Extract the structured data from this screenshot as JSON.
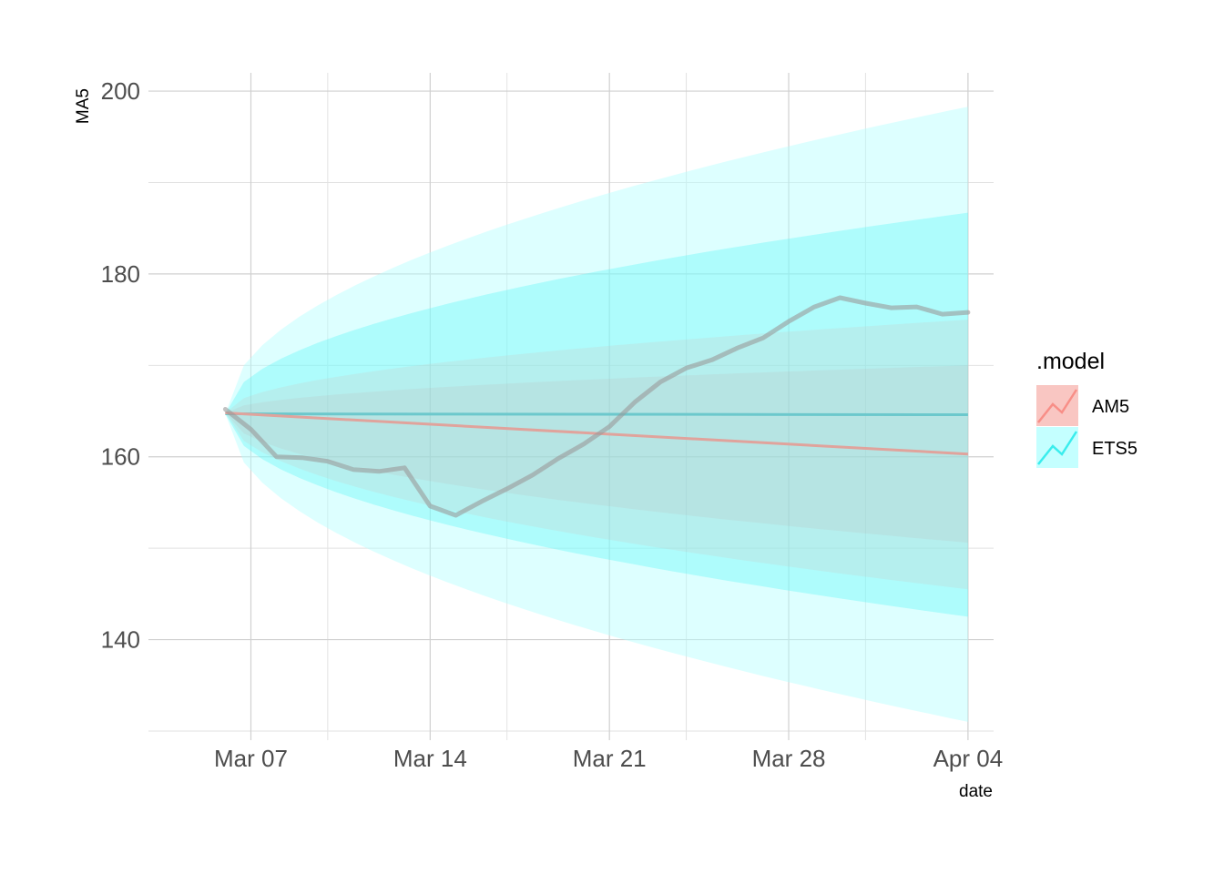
{
  "chart_data": {
    "type": "line",
    "title": "",
    "xlabel": "date",
    "ylabel": "MA5",
    "x_range": [
      "2021-03-03",
      "2021-04-05"
    ],
    "ylim": [
      129,
      202
    ],
    "grid": true,
    "y_ticks": [
      140,
      160,
      180,
      200
    ],
    "x_ticks": [
      {
        "date": "2021-03-07",
        "label": "Mar 07"
      },
      {
        "date": "2021-03-14",
        "label": "Mar 14"
      },
      {
        "date": "2021-03-21",
        "label": "Mar 21"
      },
      {
        "date": "2021-03-28",
        "label": "Mar 28"
      },
      {
        "date": "2021-04-04",
        "label": "Apr 04"
      }
    ],
    "x_minor_ticks": [
      "2021-03-10",
      "2021-03-17",
      "2021-03-24",
      "2021-03-31"
    ],
    "y_minor_ticks": [
      130,
      150,
      170,
      190
    ],
    "legend": {
      "title": ".model",
      "position": "right",
      "entries": [
        {
          "label": "AM5",
          "color": "#f8766d"
        },
        {
          "label": "ETS5",
          "color": "#00e5e5"
        }
      ]
    },
    "actual": {
      "color": "#999999",
      "points": [
        [
          "2021-03-06",
          165.2
        ],
        [
          "2021-03-07",
          163.0
        ],
        [
          "2021-03-08",
          160.0
        ],
        [
          "2021-03-09",
          159.9
        ],
        [
          "2021-03-10",
          159.5
        ],
        [
          "2021-03-11",
          158.6
        ],
        [
          "2021-03-12",
          158.4
        ],
        [
          "2021-03-13",
          158.8
        ],
        [
          "2021-03-14",
          154.6
        ],
        [
          "2021-03-15",
          153.6
        ],
        [
          "2021-03-16",
          155.1
        ],
        [
          "2021-03-17",
          156.5
        ],
        [
          "2021-03-18",
          158.0
        ],
        [
          "2021-03-19",
          159.8
        ],
        [
          "2021-03-20",
          161.4
        ],
        [
          "2021-03-21",
          163.3
        ],
        [
          "2021-03-22",
          166.0
        ],
        [
          "2021-03-23",
          168.2
        ],
        [
          "2021-03-24",
          169.7
        ],
        [
          "2021-03-25",
          170.6
        ],
        [
          "2021-03-26",
          171.9
        ],
        [
          "2021-03-27",
          173.0
        ],
        [
          "2021-03-28",
          174.8
        ],
        [
          "2021-03-29",
          176.4
        ],
        [
          "2021-03-30",
          177.4
        ],
        [
          "2021-03-31",
          176.8
        ],
        [
          "2021-04-01",
          176.3
        ],
        [
          "2021-04-02",
          176.4
        ],
        [
          "2021-04-03",
          175.6
        ],
        [
          "2021-04-04",
          175.8
        ]
      ]
    },
    "forecasts": [
      {
        "name": "ETS5",
        "color": "#00e5e5",
        "start": "2021-03-06",
        "end": "2021-04-04",
        "mean": [
          164.7,
          164.6
        ],
        "interval_80": [
          [
            164.7,
            164.7
          ],
          [
            142.5,
            186.7
          ]
        ],
        "interval_95": [
          [
            164.7,
            164.7
          ],
          [
            131.0,
            198.3
          ]
        ]
      },
      {
        "name": "AM5",
        "color": "#f8766d",
        "start": "2021-03-06",
        "end": "2021-04-04",
        "mean": [
          164.8,
          160.3
        ],
        "interval_80": [
          [
            164.8,
            164.8
          ],
          [
            150.6,
            170.0
          ]
        ],
        "interval_95": [
          [
            164.8,
            164.8
          ],
          [
            145.5,
            175.0
          ]
        ]
      }
    ]
  }
}
